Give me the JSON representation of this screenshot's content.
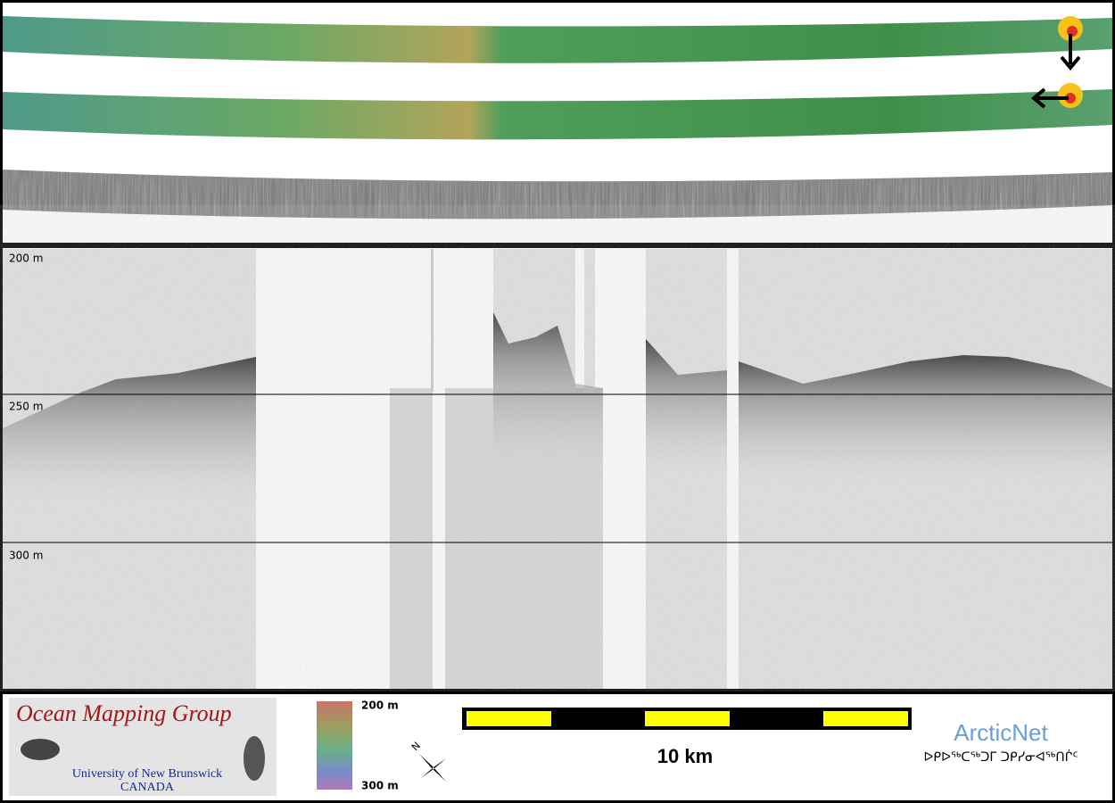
{
  "profile": {
    "depth_labels": [
      "200 m",
      "250 m",
      "300 m"
    ]
  },
  "footer": {
    "logo": {
      "title": "Ocean Mapping Group",
      "university": "University of New Brunswick",
      "country": "CANADA"
    },
    "colorbar": {
      "top": "200 m",
      "bottom": "300 m"
    },
    "compass": "N",
    "scale_bar": "10 km",
    "partner": {
      "name": "ArcticNet",
      "syllabics": "ᐅᑭᐅᖅᑕᖅᑐᒥ ᑐᑭᓯᓂᐊᖅᑎᒌᑦ"
    }
  }
}
